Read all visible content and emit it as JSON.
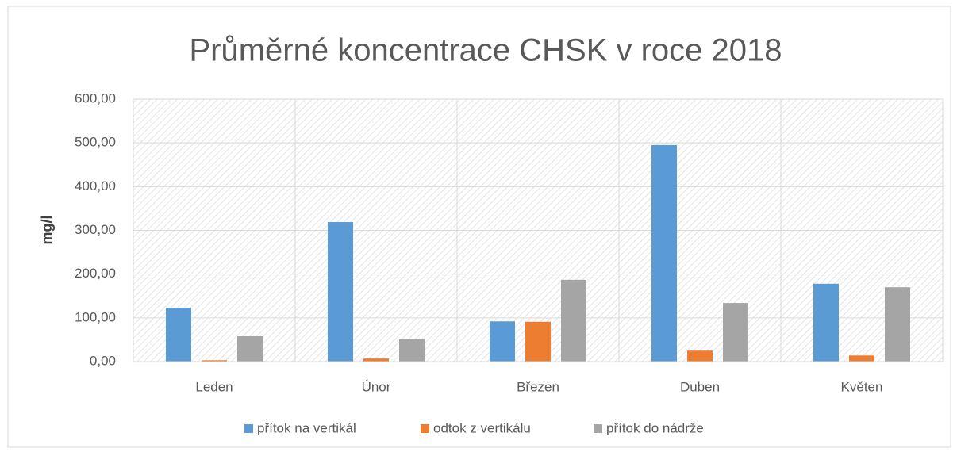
{
  "chart_data": {
    "type": "bar",
    "title": "Průměrné koncentrace CHSK v roce 2018",
    "y_label": "mg/l",
    "categories": [
      "Leden",
      "Únor",
      "Březen",
      "Duben",
      "Květen"
    ],
    "series": [
      {
        "name": "přítok na vertikál",
        "color": "#5b9bd5",
        "values": [
          123,
          319,
          92,
          495,
          178
        ]
      },
      {
        "name": "odtok z vertikálu",
        "color": "#ed7d31",
        "values": [
          3,
          7,
          91,
          25,
          14
        ]
      },
      {
        "name": "přítok do nádrže",
        "color": "#a5a5a5",
        "values": [
          58,
          51,
          187,
          134,
          170
        ]
      }
    ],
    "ylim": [
      0,
      600
    ],
    "yticks": [
      {
        "value": 0,
        "label": "0,00"
      },
      {
        "value": 100,
        "label": "100,00"
      },
      {
        "value": 200,
        "label": "200,00"
      },
      {
        "value": 300,
        "label": "300,00"
      },
      {
        "value": 400,
        "label": "400,00"
      },
      {
        "value": 500,
        "label": "500,00"
      },
      {
        "value": 600,
        "label": "600,00"
      }
    ],
    "grid": true,
    "legend": "bottom"
  }
}
